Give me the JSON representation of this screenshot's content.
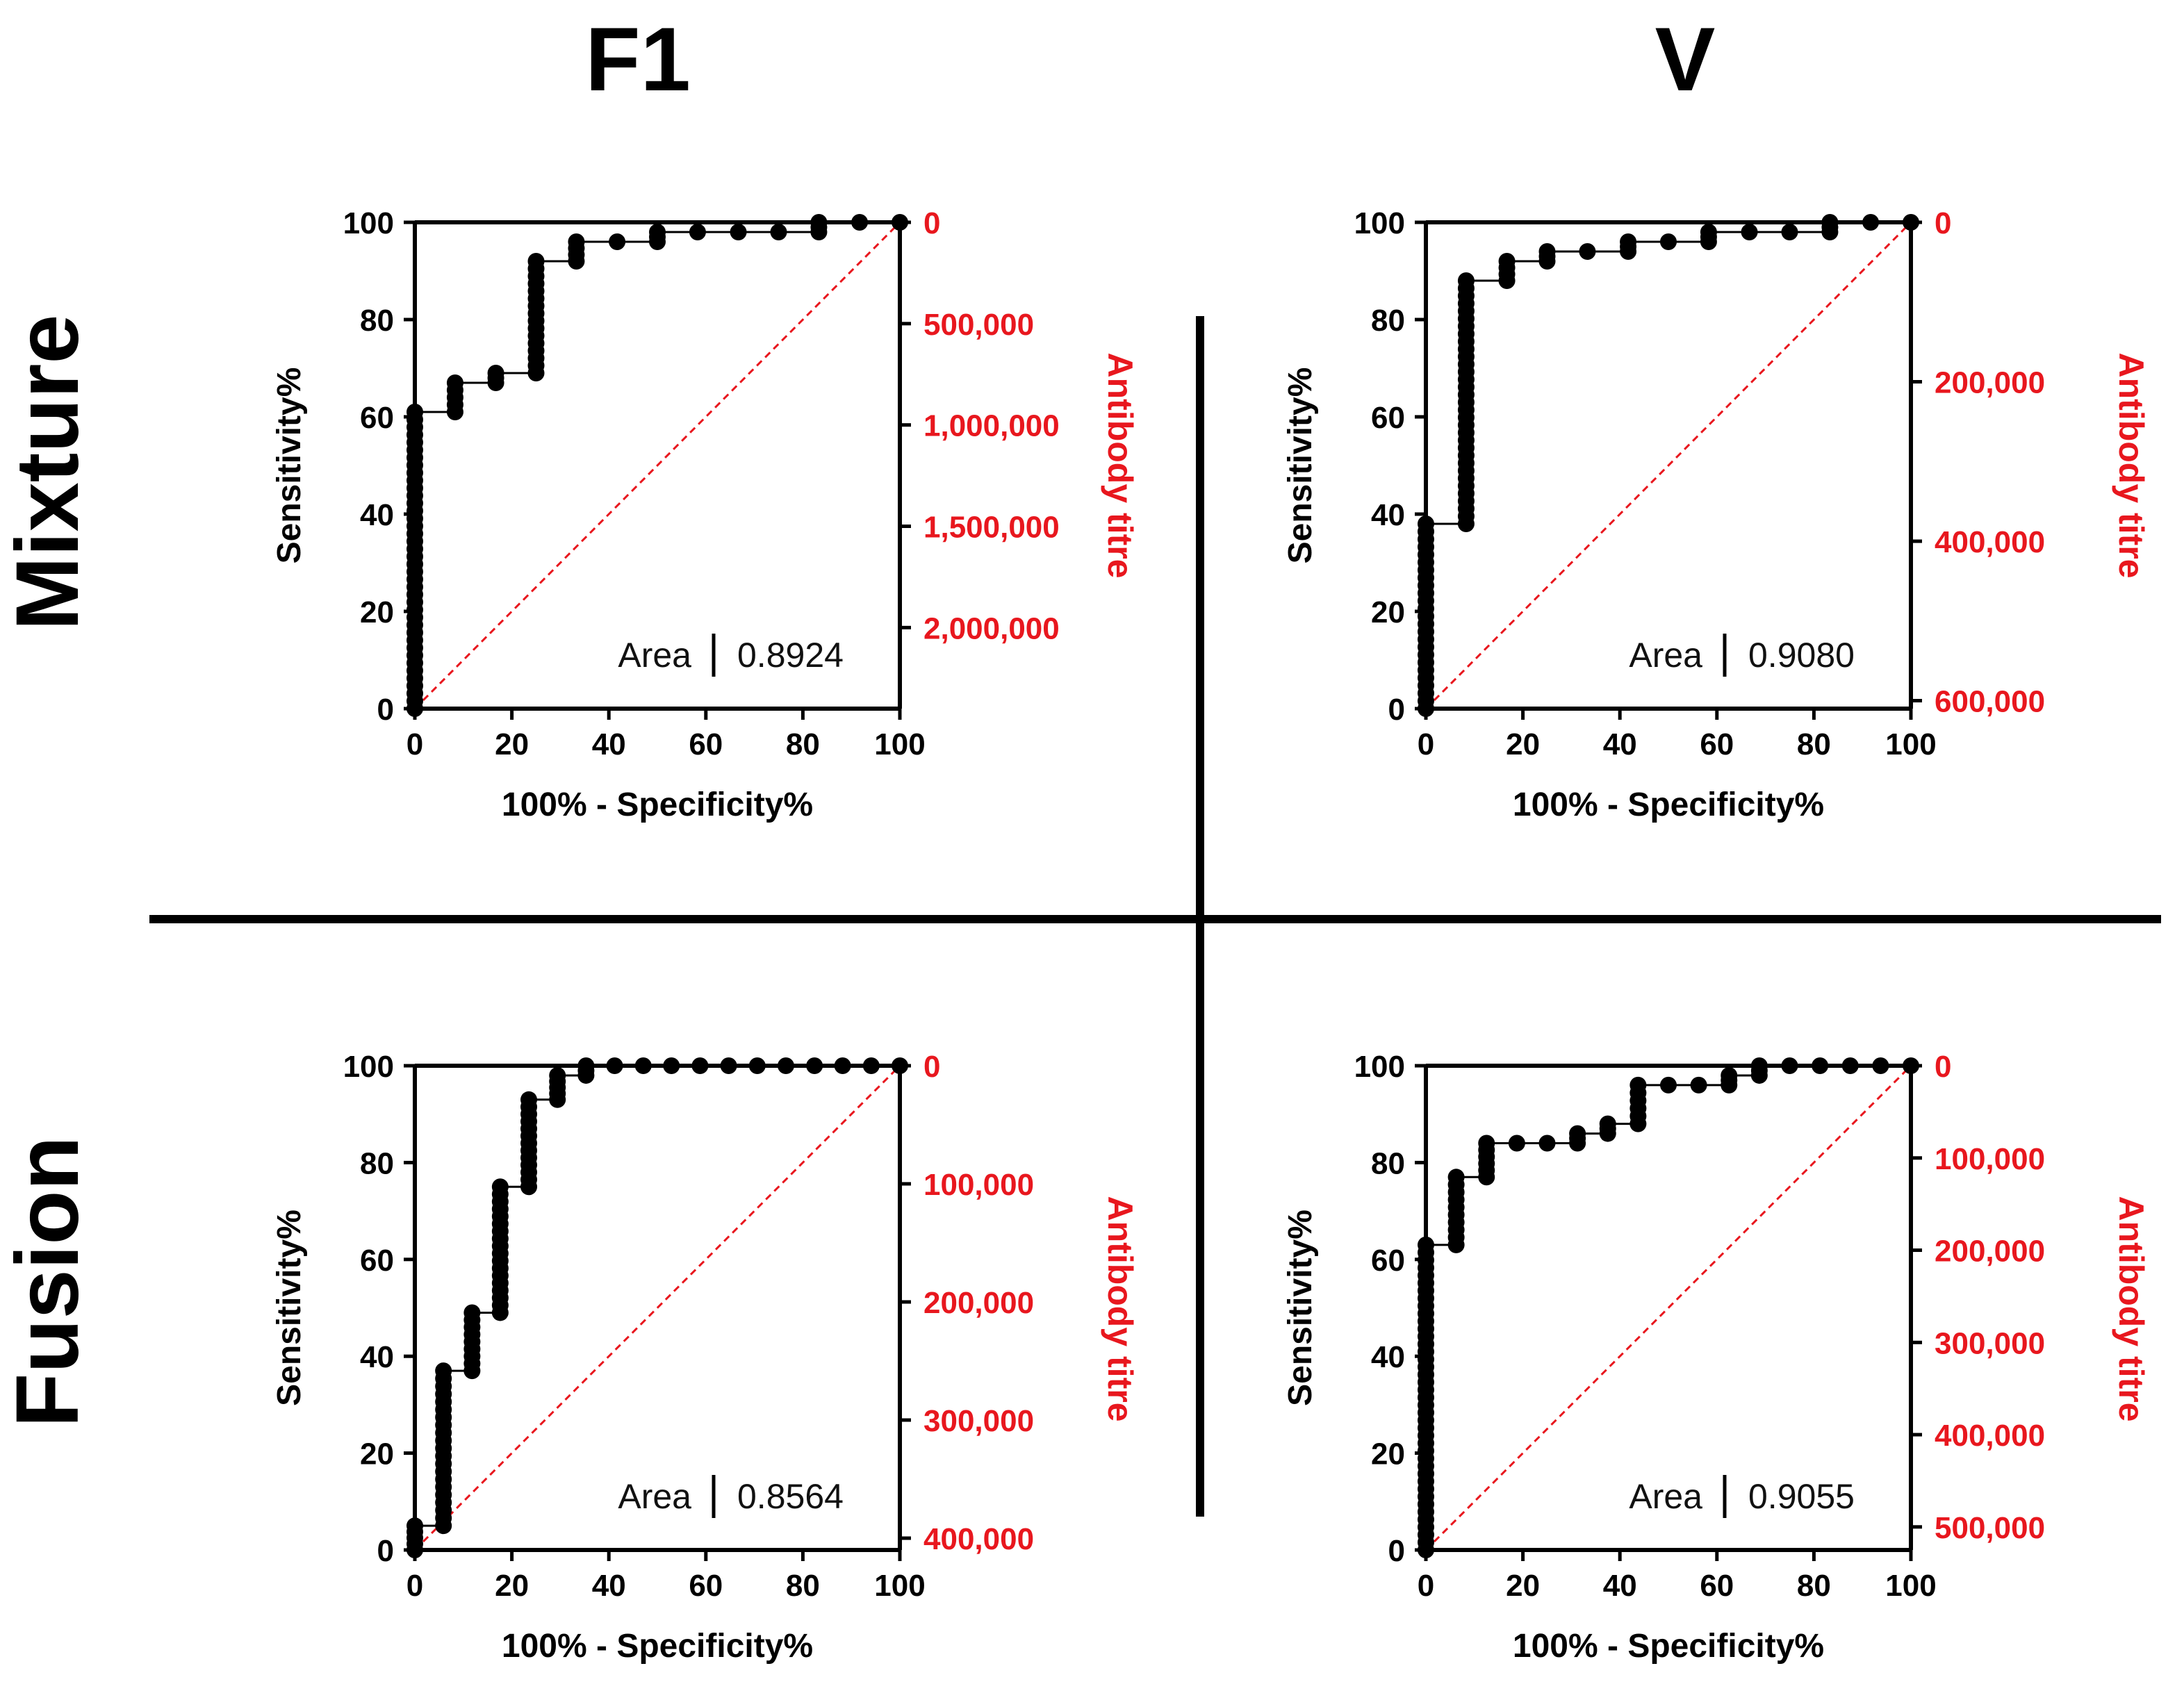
{
  "figure": {
    "columns": [
      "F1",
      "V"
    ],
    "rows": [
      "Mixture",
      "Fusion"
    ]
  },
  "colors": {
    "right_axis": "#e8171e",
    "reference_line": "#e8171e",
    "curve": "#000000"
  },
  "chart_data": [
    {
      "id": "mixture-f1",
      "type": "line",
      "row": "Mixture",
      "column": "F1",
      "xlabel": "100% - Specificity%",
      "ylabel": "Sensitivity%",
      "y2label": "Antibody titre",
      "xlim": [
        0,
        100
      ],
      "ylim": [
        0,
        100
      ],
      "xticks": [
        "0",
        "20",
        "40",
        "60",
        "80",
        "100"
      ],
      "yticks": [
        "0",
        "20",
        "40",
        "60",
        "80",
        "100"
      ],
      "y2ticks": [
        {
          "value": 0,
          "label": "0"
        },
        {
          "value": 500000,
          "label": "500,000"
        },
        {
          "value": 1000000,
          "label": "1,000,000"
        },
        {
          "value": 1500000,
          "label": "1,500,000"
        },
        {
          "value": 2000000,
          "label": "2,000,000"
        }
      ],
      "y2range": [
        0,
        2400000
      ],
      "area_label": "Area",
      "area_value": "0.8924",
      "reference_line": [
        [
          0,
          0
        ],
        [
          100,
          100
        ]
      ],
      "roc": [
        {
          "x": 0,
          "y_from": 0,
          "y_to": 61
        },
        {
          "x": 8.3,
          "y_from": 61,
          "y_to": 67
        },
        {
          "x": 16.7,
          "y_from": 67,
          "y_to": 69
        },
        {
          "x": 25,
          "y_from": 69,
          "y_to": 92
        },
        {
          "x": 33.3,
          "y_from": 92,
          "y_to": 96
        },
        {
          "x": 41.7,
          "y_from": 96,
          "y_to": 96
        },
        {
          "x": 50,
          "y_from": 96,
          "y_to": 98
        },
        {
          "x": 58.3,
          "y_from": 98,
          "y_to": 98
        },
        {
          "x": 66.7,
          "y_from": 98,
          "y_to": 98
        },
        {
          "x": 75,
          "y_from": 98,
          "y_to": 98
        },
        {
          "x": 83.3,
          "y_from": 98,
          "y_to": 100
        },
        {
          "x": 91.7,
          "y_from": 100,
          "y_to": 100
        },
        {
          "x": 100,
          "y_from": 100,
          "y_to": 100
        }
      ]
    },
    {
      "id": "mixture-v",
      "type": "line",
      "row": "Mixture",
      "column": "V",
      "xlabel": "100% - Specificity%",
      "ylabel": "Sensitivity%",
      "y2label": "Antibody titre",
      "xlim": [
        0,
        100
      ],
      "ylim": [
        0,
        100
      ],
      "xticks": [
        "0",
        "20",
        "40",
        "60",
        "80",
        "100"
      ],
      "yticks": [
        "0",
        "20",
        "40",
        "60",
        "80",
        "100"
      ],
      "y2ticks": [
        {
          "value": 0,
          "label": "0"
        },
        {
          "value": 200000,
          "label": "200,000"
        },
        {
          "value": 400000,
          "label": "400,000"
        },
        {
          "value": 600000,
          "label": "600,000"
        }
      ],
      "y2range": [
        0,
        610000
      ],
      "area_label": "Area",
      "area_value": "0.9080",
      "reference_line": [
        [
          0,
          0
        ],
        [
          100,
          100
        ]
      ],
      "roc": [
        {
          "x": 0,
          "y_from": 0,
          "y_to": 38
        },
        {
          "x": 8.3,
          "y_from": 38,
          "y_to": 88
        },
        {
          "x": 16.7,
          "y_from": 88,
          "y_to": 92
        },
        {
          "x": 25,
          "y_from": 92,
          "y_to": 94
        },
        {
          "x": 33.3,
          "y_from": 94,
          "y_to": 94
        },
        {
          "x": 41.7,
          "y_from": 94,
          "y_to": 96
        },
        {
          "x": 50,
          "y_from": 96,
          "y_to": 96
        },
        {
          "x": 58.3,
          "y_from": 96,
          "y_to": 98
        },
        {
          "x": 66.7,
          "y_from": 98,
          "y_to": 98
        },
        {
          "x": 75,
          "y_from": 98,
          "y_to": 98
        },
        {
          "x": 83.3,
          "y_from": 98,
          "y_to": 100
        },
        {
          "x": 91.7,
          "y_from": 100,
          "y_to": 100
        },
        {
          "x": 100,
          "y_from": 100,
          "y_to": 100
        }
      ]
    },
    {
      "id": "fusion-f1",
      "type": "line",
      "row": "Fusion",
      "column": "F1",
      "xlabel": "100% - Specificity%",
      "ylabel": "Sensitivity%",
      "y2label": "Antibody titre",
      "xlim": [
        0,
        100
      ],
      "ylim": [
        0,
        100
      ],
      "xticks": [
        "0",
        "20",
        "40",
        "60",
        "80",
        "100"
      ],
      "yticks": [
        "0",
        "20",
        "40",
        "60",
        "80",
        "100"
      ],
      "y2ticks": [
        {
          "value": 0,
          "label": "0"
        },
        {
          "value": 100000,
          "label": "100,000"
        },
        {
          "value": 200000,
          "label": "200,000"
        },
        {
          "value": 300000,
          "label": "300,000"
        },
        {
          "value": 400000,
          "label": "400,000"
        }
      ],
      "y2range": [
        0,
        410000
      ],
      "area_label": "Area",
      "area_value": "0.8564",
      "reference_line": [
        [
          0,
          0
        ],
        [
          100,
          100
        ]
      ],
      "roc": [
        {
          "x": 0,
          "y_from": 0,
          "y_to": 5
        },
        {
          "x": 5.9,
          "y_from": 5,
          "y_to": 37
        },
        {
          "x": 11.8,
          "y_from": 37,
          "y_to": 49
        },
        {
          "x": 17.6,
          "y_from": 49,
          "y_to": 75
        },
        {
          "x": 23.5,
          "y_from": 75,
          "y_to": 93
        },
        {
          "x": 29.4,
          "y_from": 93,
          "y_to": 98
        },
        {
          "x": 35.3,
          "y_from": 98,
          "y_to": 100
        },
        {
          "x": 41.2,
          "y_from": 100,
          "y_to": 100
        },
        {
          "x": 47.1,
          "y_from": 100,
          "y_to": 100
        },
        {
          "x": 52.9,
          "y_from": 100,
          "y_to": 100
        },
        {
          "x": 58.8,
          "y_from": 100,
          "y_to": 100
        },
        {
          "x": 64.7,
          "y_from": 100,
          "y_to": 100
        },
        {
          "x": 70.6,
          "y_from": 100,
          "y_to": 100
        },
        {
          "x": 76.5,
          "y_from": 100,
          "y_to": 100
        },
        {
          "x": 82.4,
          "y_from": 100,
          "y_to": 100
        },
        {
          "x": 88.2,
          "y_from": 100,
          "y_to": 100
        },
        {
          "x": 94.1,
          "y_from": 100,
          "y_to": 100
        },
        {
          "x": 100,
          "y_from": 100,
          "y_to": 100
        }
      ]
    },
    {
      "id": "fusion-v",
      "type": "line",
      "row": "Fusion",
      "column": "V",
      "xlabel": "100% - Specificity%",
      "ylabel": "Sensitivity%",
      "y2label": "Antibody titre",
      "xlim": [
        0,
        100
      ],
      "ylim": [
        0,
        100
      ],
      "xticks": [
        "0",
        "20",
        "40",
        "60",
        "80",
        "100"
      ],
      "yticks": [
        "0",
        "20",
        "40",
        "60",
        "80",
        "100"
      ],
      "y2ticks": [
        {
          "value": 0,
          "label": "0"
        },
        {
          "value": 100000,
          "label": "100,000"
        },
        {
          "value": 200000,
          "label": "200,000"
        },
        {
          "value": 300000,
          "label": "300,000"
        },
        {
          "value": 400000,
          "label": "400,000"
        },
        {
          "value": 500000,
          "label": "500,000"
        }
      ],
      "y2range": [
        0,
        525000
      ],
      "area_label": "Area",
      "area_value": "0.9055",
      "reference_line": [
        [
          0,
          0
        ],
        [
          100,
          100
        ]
      ],
      "roc": [
        {
          "x": 0,
          "y_from": 0,
          "y_to": 63
        },
        {
          "x": 6.25,
          "y_from": 63,
          "y_to": 77
        },
        {
          "x": 12.5,
          "y_from": 77,
          "y_to": 84
        },
        {
          "x": 18.75,
          "y_from": 84,
          "y_to": 84
        },
        {
          "x": 25,
          "y_from": 84,
          "y_to": 84
        },
        {
          "x": 31.25,
          "y_from": 84,
          "y_to": 86
        },
        {
          "x": 37.5,
          "y_from": 86,
          "y_to": 88
        },
        {
          "x": 43.75,
          "y_from": 88,
          "y_to": 96
        },
        {
          "x": 50,
          "y_from": 96,
          "y_to": 96
        },
        {
          "x": 56.25,
          "y_from": 96,
          "y_to": 96
        },
        {
          "x": 62.5,
          "y_from": 96,
          "y_to": 98
        },
        {
          "x": 68.75,
          "y_from": 98,
          "y_to": 100
        },
        {
          "x": 75,
          "y_from": 100,
          "y_to": 100
        },
        {
          "x": 81.25,
          "y_from": 100,
          "y_to": 100
        },
        {
          "x": 87.5,
          "y_from": 100,
          "y_to": 100
        },
        {
          "x": 93.75,
          "y_from": 100,
          "y_to": 100
        },
        {
          "x": 100,
          "y_from": 100,
          "y_to": 100
        }
      ]
    }
  ]
}
